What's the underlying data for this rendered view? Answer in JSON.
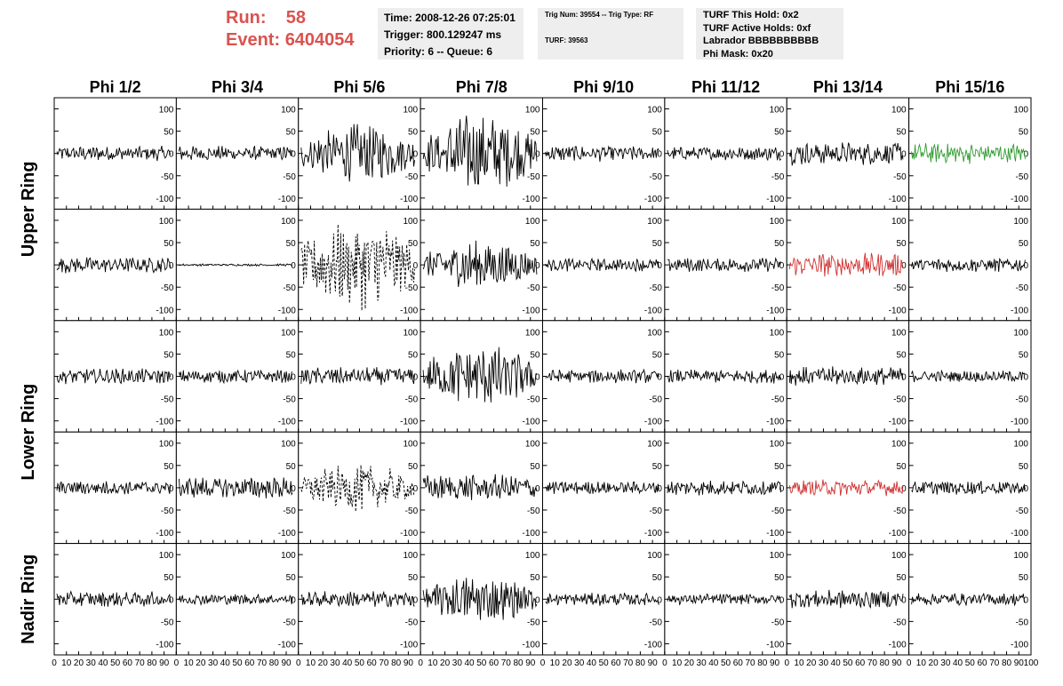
{
  "header": {
    "run_label": "Run:",
    "run_value": "58",
    "event_label": "Event:",
    "event_value": "6404054",
    "time": "Time: 2008-12-26 07:25:01",
    "trigger": "Trigger: 800.129247 ms",
    "priority": "Priority: 6 -- Queue: 6",
    "trig_num": "Trig Num: 39554 -- Trig Type: RF",
    "turf": "TURF: 39563",
    "turf_this_hold": "TURF This Hold: 0x2",
    "turf_active_holds": "TURF Active Holds: 0xf",
    "labrador": "Labrador BBBBBBBBBB",
    "phi_mask": "Phi Mask: 0x20"
  },
  "chart_data": {
    "type": "line",
    "columns": [
      "Phi 1/2",
      "Phi 3/4",
      "Phi 5/6",
      "Phi 7/8",
      "Phi 9/10",
      "Phi 11/12",
      "Phi 13/14",
      "Phi 15/16"
    ],
    "rows": [
      "Upper Ring",
      "Lower Ring",
      "Nadir Ring"
    ],
    "ylim": [
      -125,
      125
    ],
    "xlim": [
      0,
      100
    ],
    "yticks": [
      "100",
      "50",
      "0",
      "-50",
      "-100"
    ],
    "xticks": [
      "0",
      "10",
      "20",
      "30",
      "40",
      "50",
      "60",
      "70",
      "80",
      "90",
      "100"
    ],
    "colors": {
      "trace": "#000000",
      "green_trace": "#2e9a2e",
      "red_trace": "#d03030"
    },
    "panels": [
      [
        {
          "amp": 14,
          "style": "solid",
          "color": "#000000"
        },
        {
          "amp": 14,
          "style": "solid",
          "color": "#000000"
        },
        {
          "amp": 55,
          "style": "solid",
          "color": "#000000"
        },
        {
          "amp": 75,
          "style": "solid",
          "color": "#000000"
        },
        {
          "amp": 15,
          "style": "solid",
          "color": "#000000"
        },
        {
          "amp": 13,
          "style": "solid",
          "color": "#000000"
        },
        {
          "amp": 22,
          "style": "solid",
          "color": "#000000"
        },
        {
          "amp": 20,
          "style": "solid",
          "color": "#2e9a2e"
        }
      ],
      [
        {
          "amp": 15,
          "style": "solid",
          "color": "#000000"
        },
        {
          "amp": 2,
          "style": "solid",
          "color": "#000000"
        },
        {
          "amp": 85,
          "style": "dashed",
          "color": "#000000"
        },
        {
          "amp": 45,
          "style": "solid",
          "color": "#000000"
        },
        {
          "amp": 12,
          "style": "solid",
          "color": "#000000"
        },
        {
          "amp": 13,
          "style": "solid",
          "color": "#000000"
        },
        {
          "amp": 22,
          "style": "solid",
          "color": "#d03030"
        },
        {
          "amp": 13,
          "style": "solid",
          "color": "#000000"
        }
      ],
      [
        {
          "amp": 14,
          "style": "solid",
          "color": "#000000"
        },
        {
          "amp": 12,
          "style": "solid",
          "color": "#000000"
        },
        {
          "amp": 17,
          "style": "solid",
          "color": "#000000"
        },
        {
          "amp": 60,
          "style": "solid",
          "color": "#000000"
        },
        {
          "amp": 13,
          "style": "solid",
          "color": "#000000"
        },
        {
          "amp": 13,
          "style": "solid",
          "color": "#000000"
        },
        {
          "amp": 18,
          "style": "solid",
          "color": "#000000"
        },
        {
          "amp": 11,
          "style": "solid",
          "color": "#000000"
        }
      ],
      [
        {
          "amp": 13,
          "style": "solid",
          "color": "#000000"
        },
        {
          "amp": 20,
          "style": "solid",
          "color": "#000000"
        },
        {
          "amp": 45,
          "style": "dashed",
          "color": "#000000"
        },
        {
          "amp": 25,
          "style": "solid",
          "color": "#000000"
        },
        {
          "amp": 12,
          "style": "solid",
          "color": "#000000"
        },
        {
          "amp": 14,
          "style": "solid",
          "color": "#000000"
        },
        {
          "amp": 15,
          "style": "solid",
          "color": "#d03030"
        },
        {
          "amp": 13,
          "style": "solid",
          "color": "#000000"
        }
      ],
      [
        {
          "amp": 14,
          "style": "solid",
          "color": "#000000"
        },
        {
          "amp": 10,
          "style": "solid",
          "color": "#000000"
        },
        {
          "amp": 15,
          "style": "solid",
          "color": "#000000"
        },
        {
          "amp": 45,
          "style": "solid",
          "color": "#000000"
        },
        {
          "amp": 12,
          "style": "solid",
          "color": "#000000"
        },
        {
          "amp": 10,
          "style": "solid",
          "color": "#000000"
        },
        {
          "amp": 17,
          "style": "solid",
          "color": "#000000"
        },
        {
          "amp": 12,
          "style": "solid",
          "color": "#000000"
        }
      ]
    ]
  }
}
